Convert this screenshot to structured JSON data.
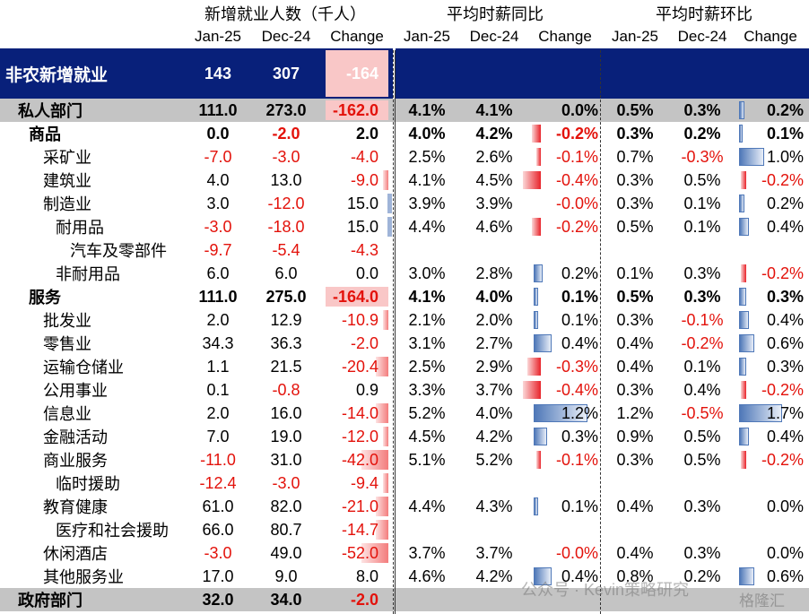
{
  "groups": [
    "新增就业人数（千人）",
    "平均时薪同比",
    "平均时薪环比"
  ],
  "columns": [
    "Jan-25",
    "Dec-24",
    "Change"
  ],
  "watermark": "公众号 · Kevin策略研究",
  "watermark_brand": "格隆汇",
  "chart_data": {
    "type": "table",
    "rows": [
      {
        "label": "非农新增就业",
        "indent": 0,
        "style": "top",
        "emp": [
          "143",
          "307",
          "-164"
        ],
        "yoy": [
          "",
          "",
          ""
        ],
        "mom": [
          "",
          "",
          ""
        ]
      },
      {
        "label": "私人部门",
        "indent": 1,
        "style": "grey",
        "emp": [
          "111.0",
          "273.0",
          "-162.0"
        ],
        "yoy": [
          "4.1%",
          "4.1%",
          "0.0%"
        ],
        "mom": [
          "0.5%",
          "0.3%",
          "0.2%"
        ]
      },
      {
        "label": "商品",
        "indent": 2,
        "style": "bold",
        "emp": [
          "0.0",
          "-2.0",
          "2.0"
        ],
        "yoy": [
          "4.0%",
          "4.2%",
          "-0.2%"
        ],
        "mom": [
          "0.3%",
          "0.2%",
          "0.1%"
        ]
      },
      {
        "label": "采矿业",
        "indent": 3,
        "style": "",
        "emp": [
          "-7.0",
          "-3.0",
          "-4.0"
        ],
        "yoy": [
          "2.5%",
          "2.6%",
          "-0.1%"
        ],
        "mom": [
          "0.7%",
          "-0.3%",
          "1.0%"
        ]
      },
      {
        "label": "建筑业",
        "indent": 3,
        "style": "",
        "emp": [
          "4.0",
          "13.0",
          "-9.0"
        ],
        "yoy": [
          "4.1%",
          "4.5%",
          "-0.4%"
        ],
        "mom": [
          "0.3%",
          "0.5%",
          "-0.2%"
        ]
      },
      {
        "label": "制造业",
        "indent": 3,
        "style": "",
        "emp": [
          "3.0",
          "-12.0",
          "15.0"
        ],
        "yoy": [
          "3.9%",
          "3.9%",
          "-0.0%"
        ],
        "mom": [
          "0.3%",
          "0.1%",
          "0.2%"
        ]
      },
      {
        "label": "耐用品",
        "indent": 4,
        "style": "",
        "emp": [
          "-3.0",
          "-18.0",
          "15.0"
        ],
        "yoy": [
          "4.4%",
          "4.6%",
          "-0.2%"
        ],
        "mom": [
          "0.5%",
          "0.1%",
          "0.4%"
        ]
      },
      {
        "label": "汽车及零部件",
        "indent": 5,
        "style": "",
        "emp": [
          "-9.7",
          "-5.4",
          "-4.3"
        ],
        "yoy": [
          "",
          "",
          ""
        ],
        "mom": [
          "",
          "",
          ""
        ]
      },
      {
        "label": "非耐用品",
        "indent": 4,
        "style": "",
        "emp": [
          "6.0",
          "6.0",
          "0.0"
        ],
        "yoy": [
          "3.0%",
          "2.8%",
          "0.2%"
        ],
        "mom": [
          "0.1%",
          "0.3%",
          "-0.2%"
        ]
      },
      {
        "label": "服务",
        "indent": 2,
        "style": "bold",
        "emp": [
          "111.0",
          "275.0",
          "-164.0"
        ],
        "yoy": [
          "4.1%",
          "4.0%",
          "0.1%"
        ],
        "mom": [
          "0.5%",
          "0.3%",
          "0.3%"
        ]
      },
      {
        "label": "批发业",
        "indent": 3,
        "style": "",
        "emp": [
          "2.0",
          "12.9",
          "-10.9"
        ],
        "yoy": [
          "2.1%",
          "2.0%",
          "0.1%"
        ],
        "mom": [
          "0.3%",
          "-0.1%",
          "0.4%"
        ]
      },
      {
        "label": "零售业",
        "indent": 3,
        "style": "",
        "emp": [
          "34.3",
          "36.3",
          "-2.0"
        ],
        "yoy": [
          "3.1%",
          "2.7%",
          "0.4%"
        ],
        "mom": [
          "0.4%",
          "-0.2%",
          "0.6%"
        ]
      },
      {
        "label": "运输仓储业",
        "indent": 3,
        "style": "",
        "emp": [
          "1.1",
          "21.5",
          "-20.4"
        ],
        "yoy": [
          "2.5%",
          "2.9%",
          "-0.3%"
        ],
        "mom": [
          "0.4%",
          "0.1%",
          "0.3%"
        ]
      },
      {
        "label": "公用事业",
        "indent": 3,
        "style": "",
        "emp": [
          "0.1",
          "-0.8",
          "0.9"
        ],
        "yoy": [
          "3.3%",
          "3.7%",
          "-0.4%"
        ],
        "mom": [
          "0.3%",
          "0.4%",
          "-0.2%"
        ]
      },
      {
        "label": "信息业",
        "indent": 3,
        "style": "",
        "emp": [
          "2.0",
          "16.0",
          "-14.0"
        ],
        "yoy": [
          "5.2%",
          "4.0%",
          "1.2%"
        ],
        "mom": [
          "1.2%",
          "-0.5%",
          "1.7%"
        ]
      },
      {
        "label": "金融活动",
        "indent": 3,
        "style": "",
        "emp": [
          "7.0",
          "19.0",
          "-12.0"
        ],
        "yoy": [
          "4.5%",
          "4.2%",
          "0.3%"
        ],
        "mom": [
          "0.9%",
          "0.5%",
          "0.4%"
        ]
      },
      {
        "label": "商业服务",
        "indent": 3,
        "style": "",
        "emp": [
          "-11.0",
          "31.0",
          "-42.0"
        ],
        "yoy": [
          "5.1%",
          "5.2%",
          "-0.1%"
        ],
        "mom": [
          "0.3%",
          "0.5%",
          "-0.2%"
        ]
      },
      {
        "label": "临时援助",
        "indent": 4,
        "style": "",
        "emp": [
          "-12.4",
          "-3.0",
          "-9.4"
        ],
        "yoy": [
          "",
          "",
          ""
        ],
        "mom": [
          "",
          "",
          ""
        ]
      },
      {
        "label": "教育健康",
        "indent": 3,
        "style": "",
        "emp": [
          "61.0",
          "82.0",
          "-21.0"
        ],
        "yoy": [
          "4.4%",
          "4.3%",
          "0.1%"
        ],
        "mom": [
          "0.4%",
          "0.3%",
          "0.0%"
        ]
      },
      {
        "label": "医疗和社会援助",
        "indent": 4,
        "style": "",
        "emp": [
          "66.0",
          "80.7",
          "-14.7"
        ],
        "yoy": [
          "",
          "",
          ""
        ],
        "mom": [
          "",
          "",
          ""
        ]
      },
      {
        "label": "休闲酒店",
        "indent": 3,
        "style": "",
        "emp": [
          "-3.0",
          "49.0",
          "-52.0"
        ],
        "yoy": [
          "3.7%",
          "3.7%",
          "-0.0%"
        ],
        "mom": [
          "0.4%",
          "0.3%",
          "0.0%"
        ]
      },
      {
        "label": "其他服务业",
        "indent": 3,
        "style": "",
        "emp": [
          "17.0",
          "9.0",
          "8.0"
        ],
        "yoy": [
          "4.6%",
          "4.2%",
          "0.4%"
        ],
        "mom": [
          "0.8%",
          "0.2%",
          "0.6%"
        ]
      },
      {
        "label": "政府部门",
        "indent": 1,
        "style": "grey",
        "emp": [
          "32.0",
          "34.0",
          "-2.0"
        ],
        "yoy": [
          "",
          "",
          ""
        ],
        "mom": [
          "",
          "",
          ""
        ]
      }
    ]
  }
}
